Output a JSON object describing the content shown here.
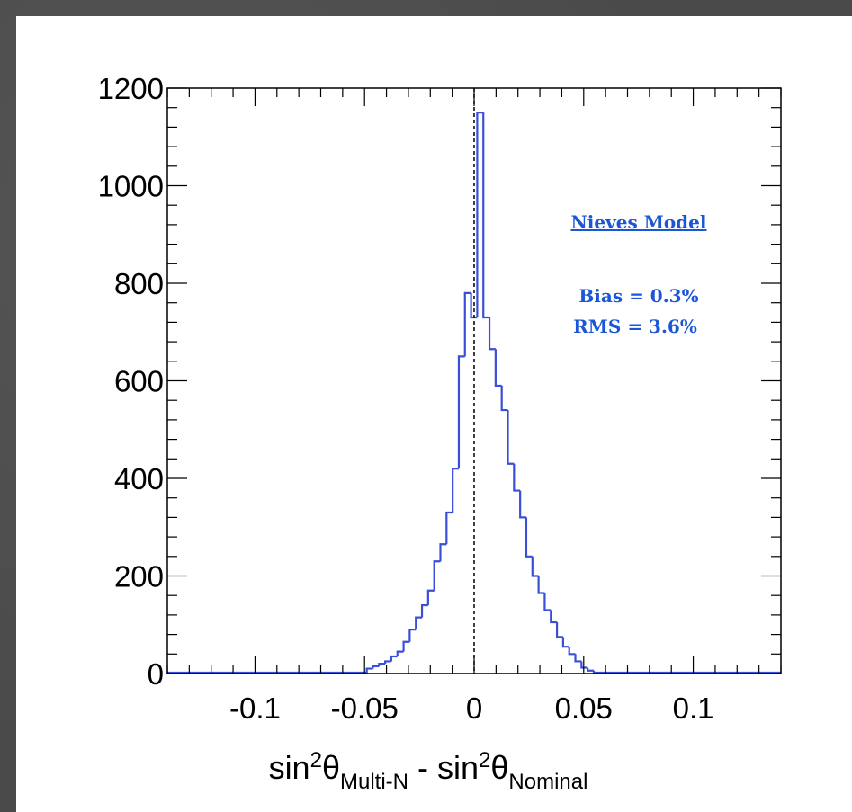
{
  "chart_data": {
    "type": "histogram",
    "xlabel": {
      "parts": [
        "sin",
        "2",
        "θ",
        "Multi-N",
        " - sin",
        "2",
        "θ",
        "Nominal"
      ]
    },
    "ylabel": "",
    "xlim": [
      -0.14,
      0.14
    ],
    "ylim": [
      0,
      1200
    ],
    "x_ticks": [
      "-0.1",
      "-0.05",
      "0",
      "0.05",
      "0.1"
    ],
    "x_tick_values": [
      -0.1,
      -0.05,
      0,
      0.05,
      0.1
    ],
    "y_ticks": [
      "0",
      "200",
      "400",
      "600",
      "800",
      "1000",
      "1200"
    ],
    "y_tick_values": [
      0,
      200,
      400,
      600,
      800,
      1000,
      1200
    ],
    "bin_width": 0.0028,
    "bins": [
      {
        "x": -0.0476,
        "count": 10
      },
      {
        "x": -0.0448,
        "count": 15
      },
      {
        "x": -0.042,
        "count": 20
      },
      {
        "x": -0.0392,
        "count": 25
      },
      {
        "x": -0.0364,
        "count": 35
      },
      {
        "x": -0.0336,
        "count": 45
      },
      {
        "x": -0.0308,
        "count": 65
      },
      {
        "x": -0.028,
        "count": 90
      },
      {
        "x": -0.0252,
        "count": 115
      },
      {
        "x": -0.0224,
        "count": 140
      },
      {
        "x": -0.0196,
        "count": 170
      },
      {
        "x": -0.0168,
        "count": 230
      },
      {
        "x": -0.014,
        "count": 265
      },
      {
        "x": -0.0112,
        "count": 330
      },
      {
        "x": -0.0084,
        "count": 420
      },
      {
        "x": -0.0056,
        "count": 650
      },
      {
        "x": -0.0028,
        "count": 780
      },
      {
        "x": 0.0,
        "count": 730
      },
      {
        "x": 0.0028,
        "count": 1150
      },
      {
        "x": 0.0056,
        "count": 730
      },
      {
        "x": 0.0084,
        "count": 665
      },
      {
        "x": 0.0112,
        "count": 590
      },
      {
        "x": 0.014,
        "count": 540
      },
      {
        "x": 0.0168,
        "count": 430
      },
      {
        "x": 0.0196,
        "count": 375
      },
      {
        "x": 0.0224,
        "count": 320
      },
      {
        "x": 0.0252,
        "count": 240
      },
      {
        "x": 0.028,
        "count": 200
      },
      {
        "x": 0.0308,
        "count": 165
      },
      {
        "x": 0.0336,
        "count": 130
      },
      {
        "x": 0.0364,
        "count": 105
      },
      {
        "x": 0.0392,
        "count": 75
      },
      {
        "x": 0.042,
        "count": 55
      },
      {
        "x": 0.0448,
        "count": 40
      },
      {
        "x": 0.0476,
        "count": 25
      },
      {
        "x": 0.0504,
        "count": 12
      },
      {
        "x": 0.0532,
        "count": 6
      }
    ],
    "reference_line": {
      "x": 0,
      "style": "dashed"
    },
    "annotations": {
      "model": "Nieves Model",
      "bias": "Bias = 0.3%",
      "rms": "RMS = 3.6%"
    },
    "grid": false,
    "colors": {
      "histogram": "#3a4fd8",
      "annotation": "#1a56d6",
      "axes": "#000000"
    }
  }
}
